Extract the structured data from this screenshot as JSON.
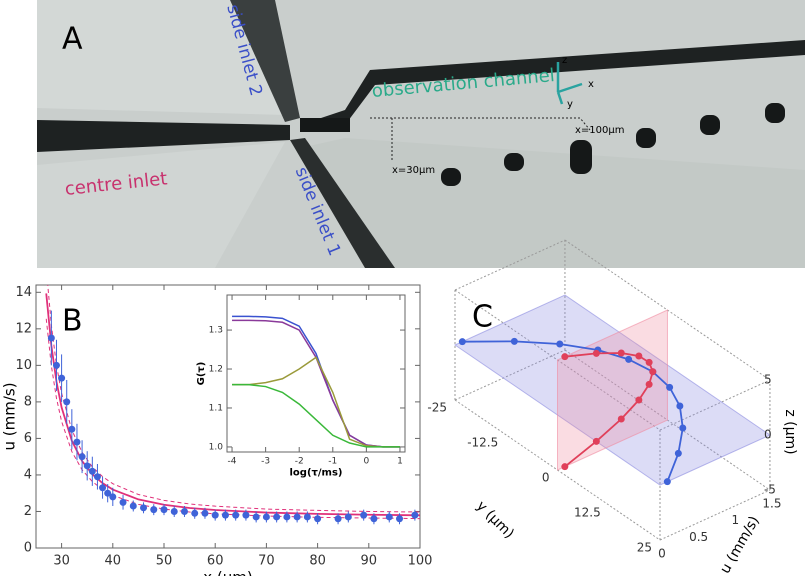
{
  "panel_a": {
    "label": "A",
    "texts": [
      "side inlet 2",
      "observation channel",
      "centre inlet",
      "side inlet 1",
      "x=30μm",
      "x=100μm"
    ],
    "axes": [
      "z",
      "x",
      "y"
    ]
  },
  "panel_b": {
    "label": "B",
    "type": "scatter",
    "x_label": "x (μm)",
    "y_label": "u (mm/s)",
    "xlim": [
      25,
      100
    ],
    "ylim": [
      0,
      14.4
    ],
    "xticks": [
      30,
      40,
      50,
      60,
      70,
      80,
      90,
      100
    ],
    "yticks": [
      0,
      2,
      4,
      6,
      8,
      10,
      12,
      14
    ],
    "color": "#3f63d8",
    "x": [
      28,
      29,
      30,
      31,
      32,
      33,
      34,
      35,
      36,
      37,
      38,
      39,
      40,
      42,
      44,
      46,
      48,
      50,
      52,
      54,
      56,
      58,
      60,
      62,
      64,
      66,
      68,
      70,
      72,
      74,
      76,
      78,
      80,
      84,
      86,
      89,
      91,
      94,
      96,
      99
    ],
    "values": [
      11.5,
      10,
      9.3,
      8,
      6.5,
      5.8,
      5,
      4.5,
      4.2,
      3.9,
      3.3,
      3,
      2.8,
      2.5,
      2.3,
      2.2,
      2.1,
      2.1,
      2,
      2,
      1.9,
      1.9,
      1.8,
      1.8,
      1.8,
      1.8,
      1.7,
      1.7,
      1.7,
      1.7,
      1.7,
      1.7,
      1.6,
      1.6,
      1.7,
      1.8,
      1.6,
      1.7,
      1.6,
      1.8
    ],
    "errors": [
      1.5,
      1.4,
      1.3,
      1.2,
      1.1,
      1,
      0.9,
      0.8,
      0.8,
      0.7,
      0.6,
      0.5,
      0.5,
      0.4,
      0.3,
      0.3,
      0.3,
      0.3,
      0.3,
      0.3,
      0.3,
      0.3,
      0.3,
      0.3,
      0.3,
      0.3,
      0.3,
      0.3,
      0.3,
      0.3,
      0.3,
      0.3,
      0.3,
      0.3,
      0.3,
      0.3,
      0.3,
      0.3,
      0.3,
      0.3
    ],
    "fit": {
      "color": "#e0307a",
      "x": [
        27,
        28,
        29,
        30,
        32,
        34,
        36,
        38,
        40,
        45,
        50,
        55,
        60,
        70,
        80,
        90,
        100
      ],
      "values": [
        13.94,
        11.08,
        9.11,
        7.7,
        5.87,
        4.76,
        4.04,
        3.55,
        3.2,
        2.66,
        2.37,
        2.19,
        2.08,
        1.94,
        1.87,
        1.82,
        1.79
      ],
      "upper": [
        15.33,
        12.19,
        10.02,
        8.47,
        6.46,
        5.24,
        4.44,
        3.91,
        3.52,
        2.93,
        2.61,
        2.41,
        2.29,
        2.13,
        2.06,
        2.0,
        1.97
      ],
      "lower": [
        12.55,
        9.97,
        8.2,
        6.93,
        5.28,
        4.28,
        3.64,
        3.2,
        2.88,
        2.39,
        2.13,
        1.97,
        1.87,
        1.75,
        1.68,
        1.64,
        1.61
      ]
    },
    "inset": {
      "type": "line",
      "x_label": "log(τ/ms)",
      "y_label": "G(τ)",
      "xlim": [
        -4.15,
        1.15
      ],
      "ylim": [
        0.987,
        1.39
      ],
      "xticks": [
        -4,
        -3,
        -2,
        -1,
        0,
        1
      ],
      "yticks": [
        {
          "value": 1,
          "label": "1.0"
        },
        1.1,
        1.2,
        1.3
      ],
      "x": [
        -4,
        -3.5,
        -3,
        -2.5,
        -2,
        -1.5,
        -1,
        -0.5,
        0,
        0.5,
        1
      ],
      "series": [
        {
          "color": "#3a52d0",
          "values": [
            1.335,
            1.335,
            1.334,
            1.33,
            1.31,
            1.24,
            1.12,
            1.03,
            1.005,
            1.0,
            1.0
          ]
        },
        {
          "color": "#8a3a9a",
          "values": [
            1.325,
            1.325,
            1.324,
            1.32,
            1.3,
            1.23,
            1.12,
            1.03,
            1.005,
            1.0,
            1.0
          ]
        },
        {
          "color": "#9a9a3a",
          "values": [
            1.16,
            1.16,
            1.165,
            1.175,
            1.2,
            1.23,
            1.14,
            1.02,
            1.003,
            1.0,
            1.0
          ]
        },
        {
          "color": "#3ab83a",
          "values": [
            1.16,
            1.16,
            1.155,
            1.14,
            1.11,
            1.07,
            1.03,
            1.01,
            1.0,
            1.0,
            1.0
          ]
        }
      ]
    }
  },
  "panel_c": {
    "label": "C",
    "y_label": "y (μm)",
    "z_label": "z (μm)",
    "u_label": "u (mm/s)",
    "ylim": [
      -25,
      25
    ],
    "zlim": [
      -5,
      5
    ],
    "ulim": [
      0,
      1.5
    ],
    "yticks": [
      -25,
      -12.5,
      0,
      12.5,
      25
    ],
    "zticks": [
      -5,
      0,
      5
    ],
    "uticks": [
      0,
      0.5,
      1,
      1.5
    ],
    "horizontal": {
      "color": "#3f63d8",
      "y": [
        -25,
        -20,
        -15,
        -10,
        -5,
        0,
        5,
        10,
        15,
        20,
        25
      ],
      "values": [
        0.1,
        0.53,
        0.87,
        1.11,
        1.25,
        1.3,
        1.25,
        1.11,
        0.87,
        0.53,
        0.1
      ]
    },
    "vertical": {
      "color": "#e0405a",
      "z": [
        -5,
        -4,
        -3,
        -2,
        -1,
        0,
        1,
        2,
        3,
        4,
        5
      ],
      "values": [
        0.1,
        0.53,
        0.87,
        1.11,
        1.25,
        1.3,
        1.25,
        1.11,
        0.87,
        0.53,
        0.1
      ]
    }
  }
}
